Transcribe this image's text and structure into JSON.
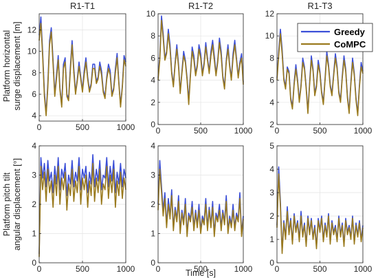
{
  "figure": {
    "ylabel_top": [
      "Platform horizontal",
      "surge displacement [m]"
    ],
    "ylabel_bottom": [
      "Platform pitch tilt",
      "angular displacement [°]"
    ],
    "xlabel": "Time [s]"
  },
  "legend": {
    "items": [
      {
        "name": "Greedy",
        "color": "#3b4fd8"
      },
      {
        "name": "CoMPC",
        "color": "#9a7a1e"
      }
    ],
    "placement": "top-right of R1-T3 surge panel"
  },
  "chart_data": [
    {
      "type": "line",
      "panel": "surge-r1-t1",
      "title": "R1-T1",
      "xlim": [
        0,
        1000
      ],
      "ylim": [
        3.5,
        13.5
      ],
      "xticks": [
        "0",
        "500",
        "1000"
      ],
      "yticks": [
        "4",
        "6",
        "8",
        "10",
        "12"
      ],
      "grid": true,
      "x": [
        0,
        20,
        40,
        60,
        80,
        100,
        120,
        140,
        160,
        180,
        200,
        220,
        240,
        260,
        280,
        300,
        320,
        340,
        360,
        380,
        400,
        420,
        440,
        460,
        480,
        500,
        520,
        540,
        560,
        580,
        600,
        620,
        640,
        660,
        680,
        700,
        720,
        740,
        760,
        780,
        800,
        820,
        840,
        860,
        880,
        900,
        920,
        940,
        960,
        980,
        1000
      ],
      "series": [
        {
          "name": "Greedy",
          "values": [
            11.5,
            13.2,
            10.0,
            6.2,
            4.2,
            7.0,
            11.0,
            12.2,
            9.2,
            6.0,
            7.8,
            9.6,
            6.6,
            5.0,
            8.8,
            9.4,
            6.0,
            5.6,
            8.6,
            11.0,
            8.4,
            6.2,
            7.4,
            9.0,
            7.6,
            6.4,
            8.2,
            9.4,
            7.6,
            6.4,
            7.0,
            8.8,
            8.8,
            7.2,
            7.6,
            9.0,
            8.2,
            6.4,
            5.8,
            7.6,
            8.8,
            8.2,
            6.0,
            6.6,
            8.4,
            9.8,
            7.2,
            5.0,
            6.8,
            9.6,
            9.0
          ]
        },
        {
          "name": "CoMPC",
          "values": [
            11.0,
            12.6,
            9.6,
            5.8,
            4.0,
            6.6,
            10.6,
            11.8,
            8.8,
            5.8,
            7.4,
            9.2,
            6.4,
            4.8,
            8.4,
            9.0,
            5.8,
            5.4,
            8.2,
            10.6,
            8.0,
            6.0,
            7.2,
            8.6,
            7.4,
            6.2,
            7.8,
            9.0,
            7.4,
            6.2,
            6.8,
            8.4,
            8.4,
            7.0,
            7.4,
            8.6,
            7.8,
            6.2,
            5.6,
            7.4,
            8.4,
            7.8,
            5.8,
            6.4,
            8.0,
            9.4,
            7.0,
            4.8,
            6.6,
            9.2,
            8.6
          ]
        }
      ]
    },
    {
      "type": "line",
      "panel": "surge-r1-t2",
      "title": "R1-T2",
      "xlim": [
        0,
        1000
      ],
      "ylim": [
        0,
        10
      ],
      "xticks": [
        "0",
        "500",
        "1000"
      ],
      "yticks": [
        "0",
        "2",
        "4",
        "6",
        "8",
        "10"
      ],
      "grid": true,
      "x": [
        0,
        20,
        40,
        60,
        80,
        100,
        120,
        140,
        160,
        180,
        200,
        220,
        240,
        260,
        280,
        300,
        320,
        340,
        360,
        380,
        400,
        420,
        440,
        460,
        480,
        500,
        520,
        540,
        560,
        580,
        600,
        620,
        640,
        660,
        680,
        700,
        720,
        740,
        760,
        780,
        800,
        820,
        840,
        860,
        880,
        900,
        920,
        940,
        960,
        980,
        1000
      ],
      "series": [
        {
          "name": "Greedy",
          "values": [
            4.2,
            6.2,
            9.8,
            8.2,
            6.0,
            6.6,
            8.6,
            7.2,
            4.8,
            3.6,
            5.6,
            7.2,
            5.4,
            3.0,
            4.8,
            6.6,
            5.8,
            4.2,
            2.2,
            4.6,
            7.0,
            6.2,
            4.6,
            5.4,
            7.2,
            6.4,
            4.6,
            5.6,
            7.4,
            6.0,
            4.8,
            6.6,
            7.6,
            6.2,
            4.6,
            5.8,
            7.8,
            6.6,
            4.4,
            3.4,
            5.8,
            7.2,
            5.4,
            4.2,
            6.4,
            7.6,
            6.0,
            4.4,
            5.6,
            6.4,
            3.8
          ]
        },
        {
          "name": "CoMPC",
          "values": [
            4.0,
            5.8,
            9.4,
            7.8,
            5.8,
            6.4,
            8.2,
            6.8,
            4.6,
            3.4,
            5.4,
            6.8,
            5.2,
            2.8,
            4.6,
            6.2,
            5.6,
            4.0,
            1.8,
            4.4,
            6.6,
            5.8,
            4.4,
            5.2,
            6.8,
            6.0,
            4.4,
            5.4,
            7.0,
            5.8,
            4.6,
            6.2,
            7.2,
            5.8,
            4.4,
            5.6,
            7.4,
            6.2,
            4.2,
            3.2,
            5.6,
            6.8,
            5.2,
            4.0,
            6.0,
            7.2,
            5.8,
            4.2,
            5.4,
            6.0,
            3.6
          ]
        }
      ]
    },
    {
      "type": "line",
      "panel": "surge-r1-t3",
      "title": "R1-T3",
      "xlim": [
        0,
        1000
      ],
      "ylim": [
        2,
        12
      ],
      "xticks": [
        "0",
        "500",
        "1000"
      ],
      "yticks": [
        "2",
        "4",
        "6",
        "8",
        "10",
        "12"
      ],
      "grid": true,
      "x": [
        0,
        20,
        40,
        60,
        80,
        100,
        120,
        140,
        160,
        180,
        200,
        220,
        240,
        260,
        280,
        300,
        320,
        340,
        360,
        380,
        400,
        420,
        440,
        460,
        480,
        500,
        520,
        540,
        560,
        580,
        600,
        620,
        640,
        660,
        680,
        700,
        720,
        740,
        760,
        780,
        800,
        820,
        840,
        860,
        880,
        900,
        920,
        940,
        960,
        980,
        1000
      ],
      "series": [
        {
          "name": "Greedy",
          "values": [
            6.2,
            8.6,
            10.6,
            8.8,
            6.2,
            5.4,
            7.2,
            6.8,
            4.4,
            3.6,
            5.8,
            7.4,
            6.0,
            4.2,
            5.6,
            8.0,
            7.2,
            5.4,
            3.2,
            5.8,
            8.2,
            7.0,
            4.8,
            5.6,
            7.8,
            6.8,
            5.0,
            4.0,
            6.2,
            8.6,
            7.4,
            5.6,
            4.8,
            6.6,
            8.4,
            7.2,
            5.0,
            4.2,
            6.4,
            8.2,
            7.0,
            4.6,
            3.2,
            5.8,
            8.0,
            6.6,
            4.4,
            3.0,
            5.6,
            7.6,
            6.8
          ]
        },
        {
          "name": "CoMPC",
          "values": [
            6.0,
            8.2,
            10.2,
            8.4,
            6.0,
            5.2,
            7.0,
            6.6,
            4.2,
            3.4,
            5.6,
            7.0,
            5.8,
            4.0,
            5.4,
            7.6,
            7.0,
            5.2,
            3.0,
            5.6,
            7.8,
            6.8,
            4.6,
            5.4,
            7.4,
            6.6,
            4.8,
            3.8,
            6.0,
            8.2,
            7.2,
            5.4,
            4.6,
            6.4,
            8.0,
            7.0,
            4.8,
            4.0,
            6.2,
            7.8,
            6.8,
            4.4,
            3.0,
            5.6,
            7.6,
            6.4,
            4.2,
            2.8,
            5.4,
            7.2,
            6.6
          ]
        }
      ]
    },
    {
      "type": "line",
      "panel": "pitch-r1-t1",
      "title": "",
      "xlim": [
        0,
        1000
      ],
      "ylim": [
        0,
        4
      ],
      "xticks": [
        "0",
        "500",
        "1000"
      ],
      "yticks": [
        "0",
        "1",
        "2",
        "3",
        "4"
      ],
      "grid": true,
      "x": [
        0,
        20,
        40,
        60,
        80,
        100,
        120,
        140,
        160,
        180,
        200,
        220,
        240,
        260,
        280,
        300,
        320,
        340,
        360,
        380,
        400,
        420,
        440,
        460,
        480,
        500,
        520,
        540,
        560,
        580,
        600,
        620,
        640,
        660,
        680,
        700,
        720,
        740,
        760,
        780,
        800,
        820,
        840,
        860,
        880,
        900,
        920,
        940,
        960,
        980,
        1000
      ],
      "series": [
        {
          "name": "Greedy",
          "values": [
            0.3,
            3.6,
            2.9,
            3.4,
            2.6,
            3.5,
            2.8,
            3.1,
            2.4,
            3.3,
            2.7,
            3.6,
            2.5,
            3.2,
            2.9,
            3.4,
            2.3,
            3.0,
            2.7,
            3.5,
            2.6,
            3.1,
            2.8,
            3.6,
            2.5,
            3.2,
            2.9,
            3.3,
            2.4,
            3.1,
            2.7,
            3.7,
            2.6,
            3.2,
            2.8,
            3.5,
            2.5,
            3.0,
            2.9,
            3.6,
            2.6,
            3.3,
            2.8,
            3.5,
            2.4,
            3.1,
            2.7,
            3.4,
            2.6,
            3.2,
            2.9
          ]
        },
        {
          "name": "CoMPC",
          "values": [
            0.2,
            3.3,
            2.5,
            3.1,
            2.1,
            3.2,
            2.4,
            2.8,
            1.9,
            3.0,
            2.3,
            3.3,
            2.0,
            2.9,
            2.5,
            3.1,
            1.8,
            2.7,
            2.3,
            3.2,
            2.1,
            2.8,
            2.4,
            3.3,
            2.0,
            2.9,
            2.5,
            3.0,
            1.9,
            2.8,
            2.3,
            3.4,
            2.1,
            2.9,
            2.4,
            3.2,
            2.0,
            2.7,
            2.5,
            3.3,
            2.2,
            3.0,
            2.4,
            3.2,
            1.9,
            2.8,
            2.3,
            3.1,
            2.2,
            2.9,
            2.5
          ]
        }
      ]
    },
    {
      "type": "line",
      "panel": "pitch-r1-t2",
      "title": "",
      "xlim": [
        0,
        1000
      ],
      "ylim": [
        0,
        4
      ],
      "xticks": [
        "0",
        "500",
        "1000"
      ],
      "yticks": [
        "0",
        "1",
        "2",
        "3",
        "4"
      ],
      "grid": true,
      "x": [
        0,
        20,
        40,
        60,
        80,
        100,
        120,
        140,
        160,
        180,
        200,
        220,
        240,
        260,
        280,
        300,
        320,
        340,
        360,
        380,
        400,
        420,
        440,
        460,
        480,
        500,
        520,
        540,
        560,
        580,
        600,
        620,
        640,
        660,
        680,
        700,
        720,
        740,
        760,
        780,
        800,
        820,
        840,
        860,
        880,
        900,
        920,
        940,
        960,
        980,
        1000
      ],
      "series": [
        {
          "name": "Greedy",
          "values": [
            2.0,
            3.5,
            2.6,
            1.8,
            2.4,
            1.3,
            2.2,
            1.6,
            2.5,
            1.2,
            1.9,
            1.5,
            2.3,
            1.1,
            1.8,
            1.4,
            2.2,
            1.0,
            1.7,
            1.5,
            2.1,
            1.2,
            1.8,
            1.3,
            2.0,
            1.1,
            1.6,
            1.4,
            2.2,
            1.2,
            1.9,
            1.3,
            2.1,
            1.0,
            1.7,
            1.5,
            2.0,
            1.2,
            1.8,
            1.4,
            2.3,
            1.1,
            1.6,
            1.3,
            2.0,
            1.2,
            1.7,
            1.5,
            2.4,
            1.0,
            1.6
          ]
        },
        {
          "name": "CoMPC",
          "values": [
            1.8,
            3.2,
            2.4,
            1.6,
            2.2,
            1.2,
            2.0,
            1.5,
            2.3,
            1.1,
            1.8,
            1.4,
            2.1,
            1.0,
            1.7,
            1.3,
            2.0,
            0.9,
            1.6,
            1.4,
            1.9,
            1.1,
            1.7,
            1.2,
            1.8,
            1.0,
            1.5,
            1.3,
            2.0,
            1.1,
            1.8,
            1.2,
            1.9,
            0.9,
            1.6,
            1.4,
            1.8,
            1.1,
            1.7,
            1.3,
            2.1,
            1.0,
            1.5,
            1.2,
            1.8,
            1.1,
            1.6,
            1.4,
            2.2,
            0.9,
            1.5
          ]
        }
      ]
    },
    {
      "type": "line",
      "panel": "pitch-r1-t3",
      "title": "",
      "xlim": [
        0,
        1000
      ],
      "ylim": [
        0,
        5
      ],
      "xticks": [
        "0",
        "500",
        "1000"
      ],
      "yticks": [
        "0",
        "1",
        "2",
        "3",
        "4",
        "5"
      ],
      "grid": true,
      "x": [
        0,
        20,
        40,
        60,
        80,
        100,
        120,
        140,
        160,
        180,
        200,
        220,
        240,
        260,
        280,
        300,
        320,
        340,
        360,
        380,
        400,
        420,
        440,
        460,
        480,
        500,
        520,
        540,
        560,
        580,
        600,
        620,
        640,
        660,
        680,
        700,
        720,
        740,
        760,
        780,
        800,
        820,
        840,
        860,
        880,
        900,
        920,
        940,
        960,
        980,
        1000
      ],
      "series": [
        {
          "name": "Greedy",
          "values": [
            1.6,
            4.1,
            2.6,
            0.5,
            1.8,
            1.1,
            2.4,
            1.3,
            1.9,
            0.9,
            2.1,
            1.4,
            1.8,
            1.0,
            2.2,
            1.2,
            1.7,
            0.8,
            2.0,
            1.3,
            1.9,
            1.1,
            1.6,
            0.7,
            1.9,
            1.4,
            2.0,
            1.0,
            1.7,
            1.2,
            2.1,
            0.9,
            1.8,
            1.3,
            1.6,
            1.0,
            2.0,
            1.2,
            1.7,
            0.8,
            1.9,
            1.3,
            1.6,
            1.1,
            2.0,
            0.9,
            1.7,
            1.2,
            1.8,
            1.0,
            1.6
          ]
        },
        {
          "name": "CoMPC",
          "values": [
            1.5,
            3.8,
            2.4,
            0.4,
            1.7,
            1.0,
            2.2,
            1.2,
            1.8,
            0.8,
            2.0,
            1.3,
            1.7,
            0.9,
            2.0,
            1.1,
            1.6,
            0.7,
            1.9,
            1.2,
            1.8,
            1.0,
            1.5,
            0.6,
            1.8,
            1.3,
            1.9,
            0.9,
            1.6,
            1.1,
            2.0,
            0.8,
            1.7,
            1.2,
            1.5,
            0.9,
            1.9,
            1.1,
            1.6,
            0.7,
            1.8,
            1.2,
            1.5,
            1.0,
            1.9,
            0.8,
            1.6,
            1.1,
            1.7,
            0.9,
            1.5
          ]
        }
      ]
    }
  ]
}
